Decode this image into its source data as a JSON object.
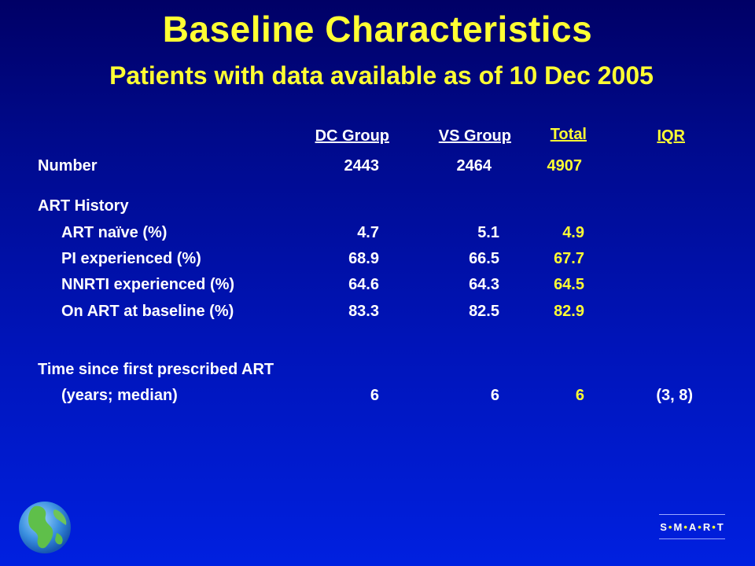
{
  "title": "Baseline Characteristics",
  "subtitle": "Patients with data available as of 10 Dec 2005",
  "columns": {
    "dc": "DC Group",
    "vs": "VS Group",
    "total": "Total",
    "iqr": "IQR"
  },
  "rows": {
    "number": {
      "label": "Number",
      "dc": "2443",
      "vs": "2464",
      "total": "4907"
    },
    "art_history": {
      "label": "ART History"
    },
    "art_naive": {
      "label": "ART naïve (%)",
      "dc": "4.7",
      "vs": "5.1",
      "total": "4.9"
    },
    "pi_exp": {
      "label": "PI experienced (%)",
      "dc": "68.9",
      "vs": "66.5",
      "total": "67.7"
    },
    "nnrti_exp": {
      "label": "NNRTI experienced (%)",
      "dc": "64.6",
      "vs": "64.3",
      "total": "64.5"
    },
    "on_art": {
      "label": "On ART at baseline (%)",
      "dc": "83.3",
      "vs": "82.5",
      "total": "82.9"
    },
    "time_since": {
      "label": "Time since first prescribed ART"
    },
    "years_median": {
      "label": "(years; median)",
      "dc": "6",
      "vs": "6",
      "total": "6",
      "iqr": "(3, 8)"
    }
  },
  "logo": {
    "letters": [
      "S",
      "M",
      "A",
      "R",
      "T"
    ],
    "dot": "•"
  },
  "colors": {
    "accent": "#ffff33",
    "text": "#ffffff",
    "background_top": "#000066",
    "background_bottom": "#0020e0"
  },
  "icons": {
    "globe": "globe-icon"
  }
}
